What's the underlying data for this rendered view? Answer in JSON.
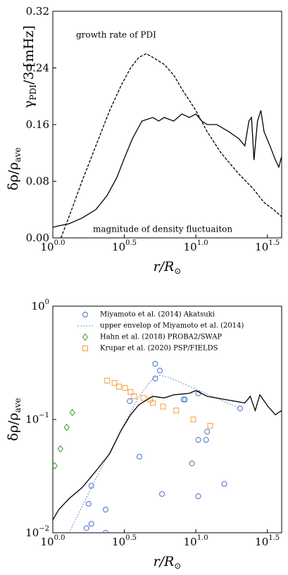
{
  "chart_data": [
    {
      "type": "combo",
      "xlabel": {
        "text": "r/R",
        "sub": "⊙"
      },
      "ylabel": [
        {
          "text": "δρ/ρ",
          "sub": "ave"
        },
        {
          "text": "γ",
          "sub": "PDI",
          "after": "/3 [mHz]"
        }
      ],
      "annotations": [
        "growth rate of PDI",
        "magnitude of density fluctuaiton"
      ],
      "xlog": true,
      "ylog": false,
      "xlim": [
        1,
        39.81
      ],
      "xticks": [
        {
          "value": 1,
          "label": "10",
          "exponent": "0.0"
        },
        {
          "value": 3.162,
          "label": "10",
          "exponent": "0.5"
        },
        {
          "value": 10,
          "label": "10",
          "exponent": "1.0"
        },
        {
          "value": 31.62,
          "label": "10",
          "exponent": "1.5"
        }
      ],
      "ylim": [
        0,
        0.32
      ],
      "yticks": [
        {
          "value": 0,
          "label": "0.00"
        },
        {
          "value": 0.08,
          "label": "0.08"
        },
        {
          "value": 0.16,
          "label": "0.16"
        },
        {
          "value": 0.24,
          "label": "0.24"
        },
        {
          "value": 0.32,
          "label": "0.32"
        }
      ],
      "series": [
        {
          "type": "line",
          "color": "#000000",
          "linestyle": "dashed",
          "x": [
            1.14,
            1.3,
            1.6,
            2.0,
            2.5,
            3.0,
            3.5,
            4.0,
            4.5,
            5.0,
            6.0,
            7.0,
            8.0,
            10.0,
            12.0,
            15.0,
            20.0,
            25.0,
            30.0,
            35.0,
            39.8
          ],
          "values": [
            0.0,
            0.03,
            0.08,
            0.13,
            0.18,
            0.215,
            0.24,
            0.255,
            0.26,
            0.255,
            0.245,
            0.23,
            0.21,
            0.18,
            0.15,
            0.12,
            0.09,
            0.07,
            0.05,
            0.04,
            0.03
          ]
        },
        {
          "type": "line",
          "color": "#000000",
          "linestyle": "solid",
          "x": [
            1.0,
            1.1,
            1.3,
            1.6,
            2.0,
            2.4,
            2.8,
            3.2,
            3.6,
            4.2,
            5.0,
            5.5,
            6.0,
            7.0,
            8.0,
            9.0,
            10.0,
            11.0,
            12.0,
            14.0,
            17.0,
            20.0,
            22.0,
            23.5,
            24.5,
            25.5,
            27.0,
            28.5,
            30.0,
            33.0,
            36.0,
            38.0,
            39.8
          ],
          "values": [
            0.015,
            0.017,
            0.02,
            0.028,
            0.04,
            0.06,
            0.085,
            0.115,
            0.14,
            0.165,
            0.17,
            0.165,
            0.17,
            0.165,
            0.175,
            0.17,
            0.175,
            0.165,
            0.16,
            0.16,
            0.15,
            0.14,
            0.13,
            0.165,
            0.17,
            0.11,
            0.165,
            0.18,
            0.15,
            0.13,
            0.11,
            0.1,
            0.115
          ]
        }
      ]
    },
    {
      "type": "combo",
      "xlabel": {
        "text": "r/R",
        "sub": "⊙"
      },
      "ylabel": [
        {
          "text": "δρ/ρ",
          "sub": "ave"
        }
      ],
      "xlog": true,
      "ylog": true,
      "legend": "upper right",
      "xlim": [
        1,
        39.81
      ],
      "xticks": [
        {
          "value": 1,
          "label": "10",
          "exponent": "0.0"
        },
        {
          "value": 3.162,
          "label": "10",
          "exponent": "0.5"
        },
        {
          "value": 10,
          "label": "10",
          "exponent": "1.0"
        },
        {
          "value": 31.62,
          "label": "10",
          "exponent": "1.5"
        }
      ],
      "ylim": [
        0.01,
        1
      ],
      "yticks": [
        {
          "value": 0.01,
          "label": "10",
          "exponent": "−2"
        },
        {
          "value": 0.1,
          "label": "10",
          "exponent": "−1"
        },
        {
          "value": 1,
          "label": "10",
          "exponent": "0"
        }
      ],
      "series": [
        {
          "type": "scatter",
          "marker": "circle",
          "name": "Miyamoto et al. (2014) Akatsuki",
          "color": "#4472c4",
          "x": [
            1.72,
            1.78,
            1.86,
            1.86,
            2.34,
            2.34,
            3.45,
            4.03,
            5.2,
            5.2,
            5.6,
            5.8,
            8.2,
            8.4,
            9.4,
            10.4,
            10.4,
            10.4,
            11.8,
            12.0,
            15.8,
            20.4
          ],
          "values": [
            0.011,
            0.018,
            0.026,
            0.012,
            0.016,
            0.01,
            0.145,
            0.047,
            0.31,
            0.23,
            0.27,
            0.022,
            0.15,
            0.15,
            0.041,
            0.17,
            0.066,
            0.021,
            0.066,
            0.078,
            0.027,
            0.125
          ]
        },
        {
          "type": "line",
          "marker": "line",
          "linestyle": "dotted",
          "name": "upper envelop of Miyamoto et al. (2014)",
          "color": "#4472c4",
          "x": [
            1.3,
            2.0,
            3.0,
            4.0,
            5.0,
            5.6,
            6.5,
            20.4
          ],
          "values": [
            0.01,
            0.03,
            0.08,
            0.16,
            0.23,
            0.245,
            0.235,
            0.125
          ]
        },
        {
          "type": "scatter",
          "marker": "diamond",
          "name": "Hahn et al. (2018) PROBA2/SWAP",
          "color": "#3a9a2e",
          "x": [
            1.03,
            1.13,
            1.25,
            1.37
          ],
          "values": [
            0.039,
            0.055,
            0.085,
            0.115
          ]
        },
        {
          "type": "scatter",
          "marker": "square",
          "name": "Krupar et al. (2020) PSP/FIELDS",
          "color": "#f0a040",
          "x": [
            2.4,
            2.7,
            2.9,
            3.2,
            3.5,
            3.7,
            4.3,
            4.8,
            5.0,
            5.9,
            7.3,
            9.6,
            12.6
          ],
          "values": [
            0.22,
            0.21,
            0.195,
            0.19,
            0.175,
            0.16,
            0.155,
            0.15,
            0.14,
            0.13,
            0.12,
            0.1,
            0.088
          ]
        },
        {
          "type": "line",
          "linestyle": "solid",
          "color": "#000000",
          "x": [
            1.0,
            1.1,
            1.3,
            1.6,
            2.0,
            2.5,
            3.0,
            3.5,
            4.0,
            5.0,
            6.0,
            7.0,
            9.0,
            10.0,
            12.0,
            16.0,
            22.0,
            24.0,
            26.0,
            28.0,
            32.0,
            36.0,
            39.8
          ],
          "values": [
            0.013,
            0.016,
            0.02,
            0.025,
            0.035,
            0.05,
            0.08,
            0.11,
            0.135,
            0.16,
            0.155,
            0.165,
            0.17,
            0.18,
            0.16,
            0.15,
            0.14,
            0.16,
            0.12,
            0.165,
            0.13,
            0.11,
            0.12
          ]
        }
      ]
    }
  ]
}
